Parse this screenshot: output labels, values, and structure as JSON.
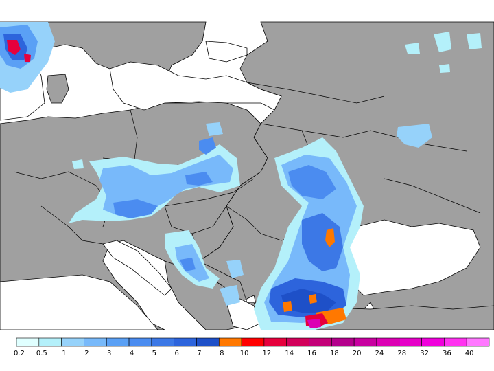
{
  "map": {
    "background_sea": "#ffffff",
    "land_color": "#a0a0a0",
    "border_color": "#000000"
  },
  "legend": {
    "levels": [
      {
        "label": "0.2",
        "color": "#e0ffff"
      },
      {
        "label": "0.5",
        "color": "#b4f0fa"
      },
      {
        "label": "1",
        "color": "#96d2fa"
      },
      {
        "label": "2",
        "color": "#78b9fa"
      },
      {
        "label": "3",
        "color": "#5aa0f5"
      },
      {
        "label": "4",
        "color": "#4b8cf0"
      },
      {
        "label": "5",
        "color": "#3c78e6"
      },
      {
        "label": "6",
        "color": "#2d64dc"
      },
      {
        "label": "7",
        "color": "#1e50c8"
      },
      {
        "label": "8",
        "color": "#ff7800"
      },
      {
        "label": "10",
        "color": "#ff0000"
      },
      {
        "label": "12",
        "color": "#e6003c"
      },
      {
        "label": "14",
        "color": "#d2005a"
      },
      {
        "label": "16",
        "color": "#c30078"
      },
      {
        "label": "18",
        "color": "#b4008c"
      },
      {
        "label": "20",
        "color": "#c800a0"
      },
      {
        "label": "24",
        "color": "#dc00b4"
      },
      {
        "label": "28",
        "color": "#e600c8"
      },
      {
        "label": "32",
        "color": "#f000dc"
      },
      {
        "label": "36",
        "color": "#ff32f0"
      },
      {
        "label": "40",
        "color": "#ff78ff"
      }
    ]
  }
}
